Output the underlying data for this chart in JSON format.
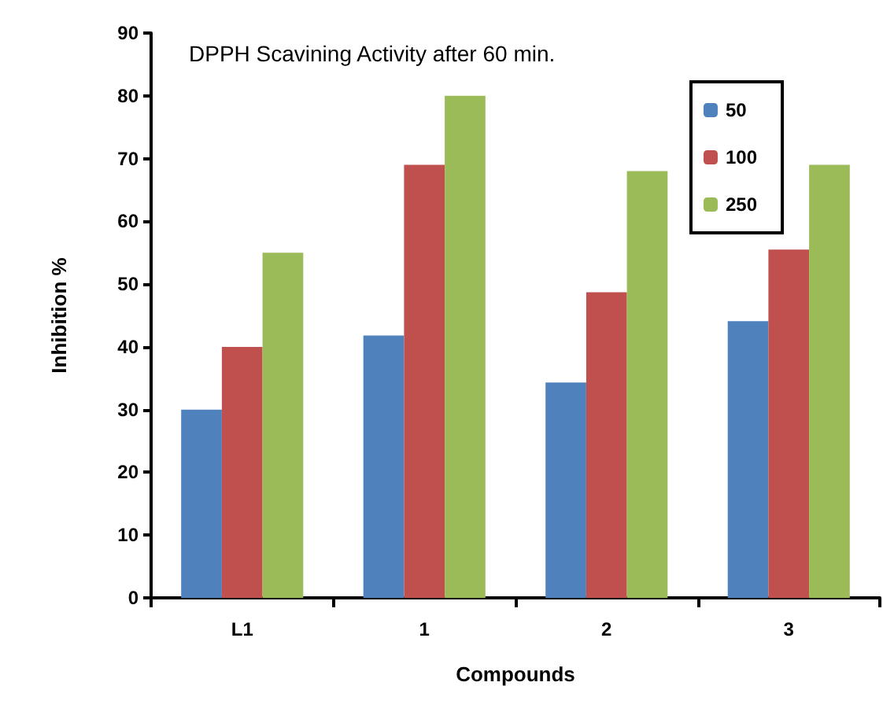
{
  "chart_data": {
    "type": "bar",
    "title": "DPPH Scavining Activity after 60 min.",
    "xlabel": "Compounds",
    "ylabel": "Inhibition %",
    "categories": [
      "L1",
      "1",
      "2",
      "3"
    ],
    "series": [
      {
        "name": "50",
        "color": "#4f81bd",
        "values": [
          30,
          41.8,
          34.3,
          44.1
        ]
      },
      {
        "name": "100",
        "color": "#c0504d",
        "values": [
          40,
          69,
          48.7,
          55.5
        ]
      },
      {
        "name": "250",
        "color": "#9bbb59",
        "values": [
          55,
          80,
          68,
          69
        ]
      }
    ],
    "ylim": [
      0,
      90
    ],
    "yticks": [
      0,
      10,
      20,
      30,
      40,
      50,
      60,
      70,
      80,
      90
    ],
    "grid": false,
    "legend": "top right"
  }
}
